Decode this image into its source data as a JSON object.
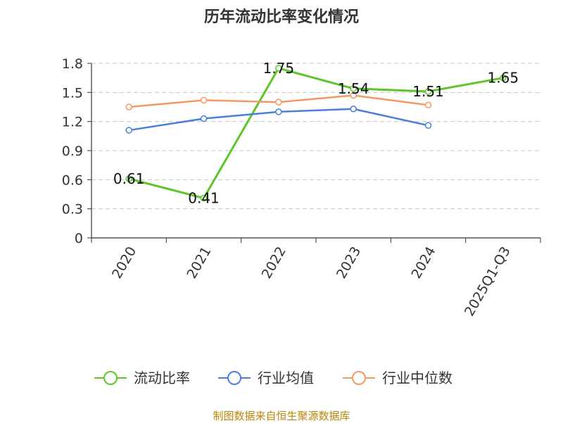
{
  "chart_data": {
    "type": "line",
    "title": "历年流动比率变化情况",
    "categories": [
      "2020",
      "2021",
      "2022",
      "2023",
      "2024",
      "2025Q1-Q3"
    ],
    "ylim": [
      0,
      1.8
    ],
    "yticks": [
      "0",
      "0.3",
      "0.6",
      "0.9",
      "1.2",
      "1.5",
      "1.8"
    ],
    "grid": true,
    "legend_position": "bottom",
    "series": [
      {
        "name": "流动比率",
        "color": "#5cc52a",
        "values": [
          0.61,
          0.41,
          1.75,
          1.54,
          1.51,
          1.65
        ],
        "labels": [
          "0.61",
          "0.41",
          "1.75",
          "1.54",
          "1.51",
          "1.65"
        ]
      },
      {
        "name": "行业均值",
        "color": "#4a7fd9",
        "values": [
          1.11,
          1.23,
          1.3,
          1.33,
          1.16,
          null
        ]
      },
      {
        "name": "行业中位数",
        "color": "#f79764",
        "values": [
          1.35,
          1.42,
          1.4,
          1.47,
          1.37,
          null
        ]
      }
    ],
    "source": "制图数据来自恒生聚源数据库"
  }
}
